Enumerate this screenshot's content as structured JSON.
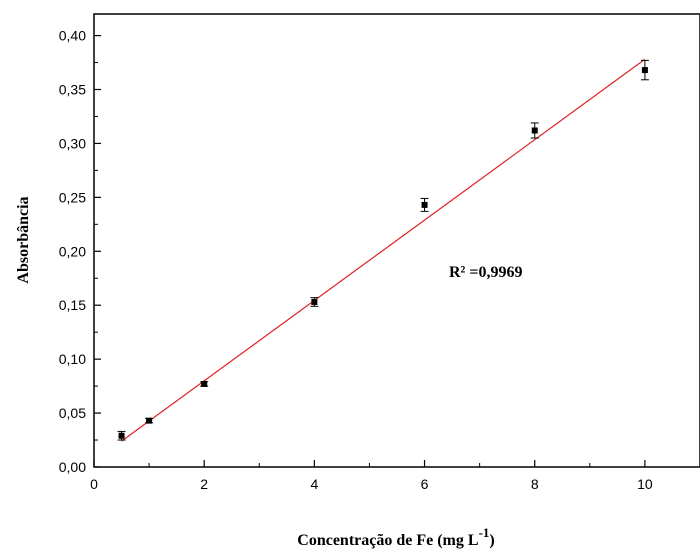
{
  "chart_data": {
    "type": "scatter",
    "xlabel": "Concentração de Fe (mg L",
    "xlabel_superscript": "-1",
    "xlabel_suffix": ")",
    "ylabel": "Absorbância",
    "xlim": [
      0,
      11
    ],
    "ylim": [
      0,
      0.42
    ],
    "x_ticks": [
      0,
      2,
      4,
      6,
      8,
      10
    ],
    "x_tick_labels": [
      "0",
      "2",
      "4",
      "6",
      "8",
      "10"
    ],
    "y_ticks": [
      0,
      0.05,
      0.1,
      0.15,
      0.2,
      0.25,
      0.3,
      0.35,
      0.4
    ],
    "y_tick_labels": [
      "0,00",
      "0,05",
      "0,10",
      "0,15",
      "0,20",
      "0,25",
      "0,30",
      "0,35",
      "0,40"
    ],
    "grid": false,
    "series": [
      {
        "x": [
          0.5,
          1,
          2,
          4,
          6,
          8,
          10
        ],
        "y": [
          0.029,
          0.043,
          0.077,
          0.153,
          0.243,
          0.312,
          0.368
        ],
        "error": [
          0.004,
          0.002,
          0.002,
          0.004,
          0.006,
          0.007,
          0.009
        ],
        "marker": "square",
        "color": "#000000"
      }
    ],
    "fit_line": {
      "x": [
        0.5,
        10
      ],
      "y": [
        0.024,
        0.378
      ],
      "color": "#e02020"
    },
    "annotation": "R² =0,9969"
  }
}
